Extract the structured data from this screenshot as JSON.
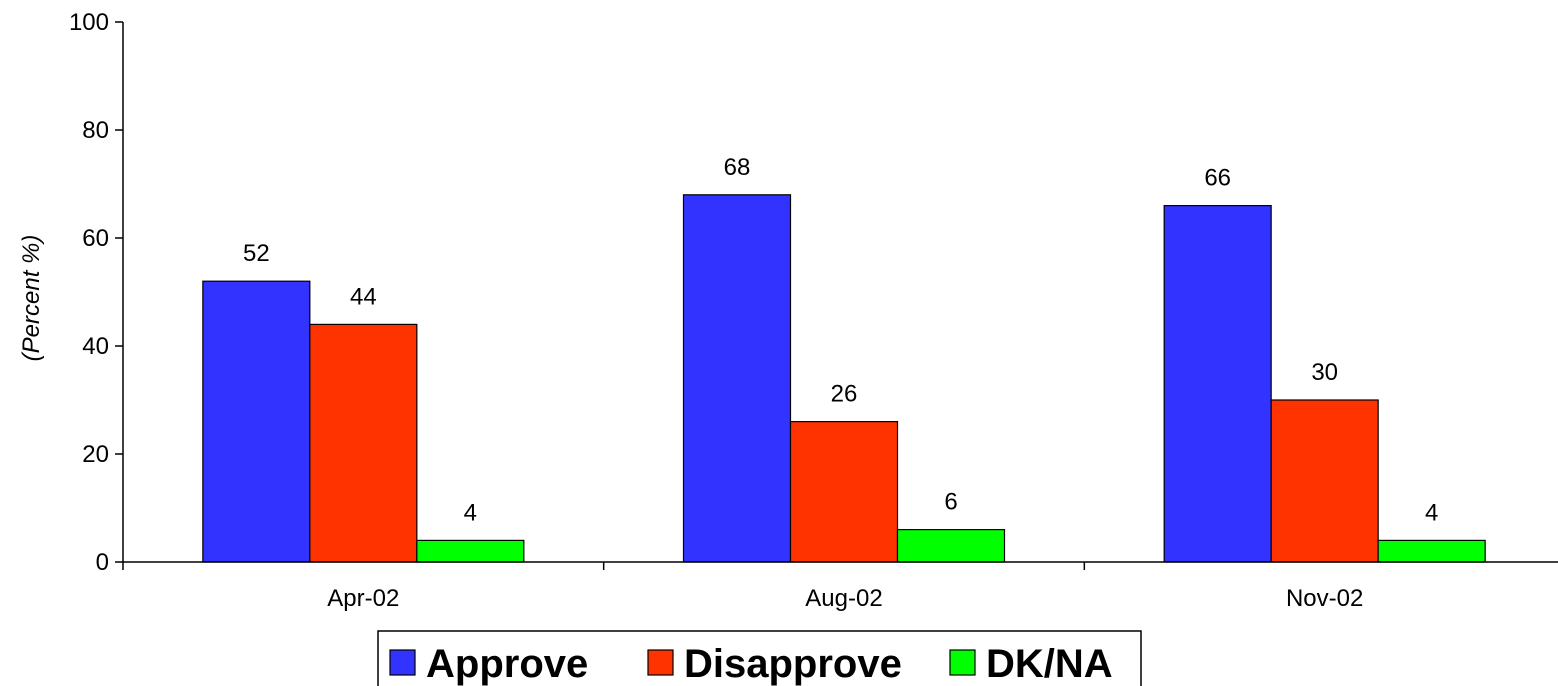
{
  "chart_data": {
    "type": "bar",
    "title": "",
    "xlabel": "",
    "ylabel": "(Percent %)",
    "categories": [
      "Apr-02",
      "Aug-02",
      "Nov-02"
    ],
    "series": [
      {
        "name": "Approve",
        "color": "#3333ff",
        "values": [
          52,
          68,
          66
        ]
      },
      {
        "name": "Disapprove",
        "color": "#ff3300",
        "values": [
          44,
          26,
          30
        ]
      },
      {
        "name": "DK/NA",
        "color": "#00ff00",
        "values": [
          4,
          6,
          4
        ]
      }
    ],
    "ylim": [
      0,
      100
    ],
    "yticks": [
      "0",
      "20",
      "40",
      "60",
      "80",
      "100"
    ],
    "grid": false,
    "legend_position": "bottom"
  }
}
